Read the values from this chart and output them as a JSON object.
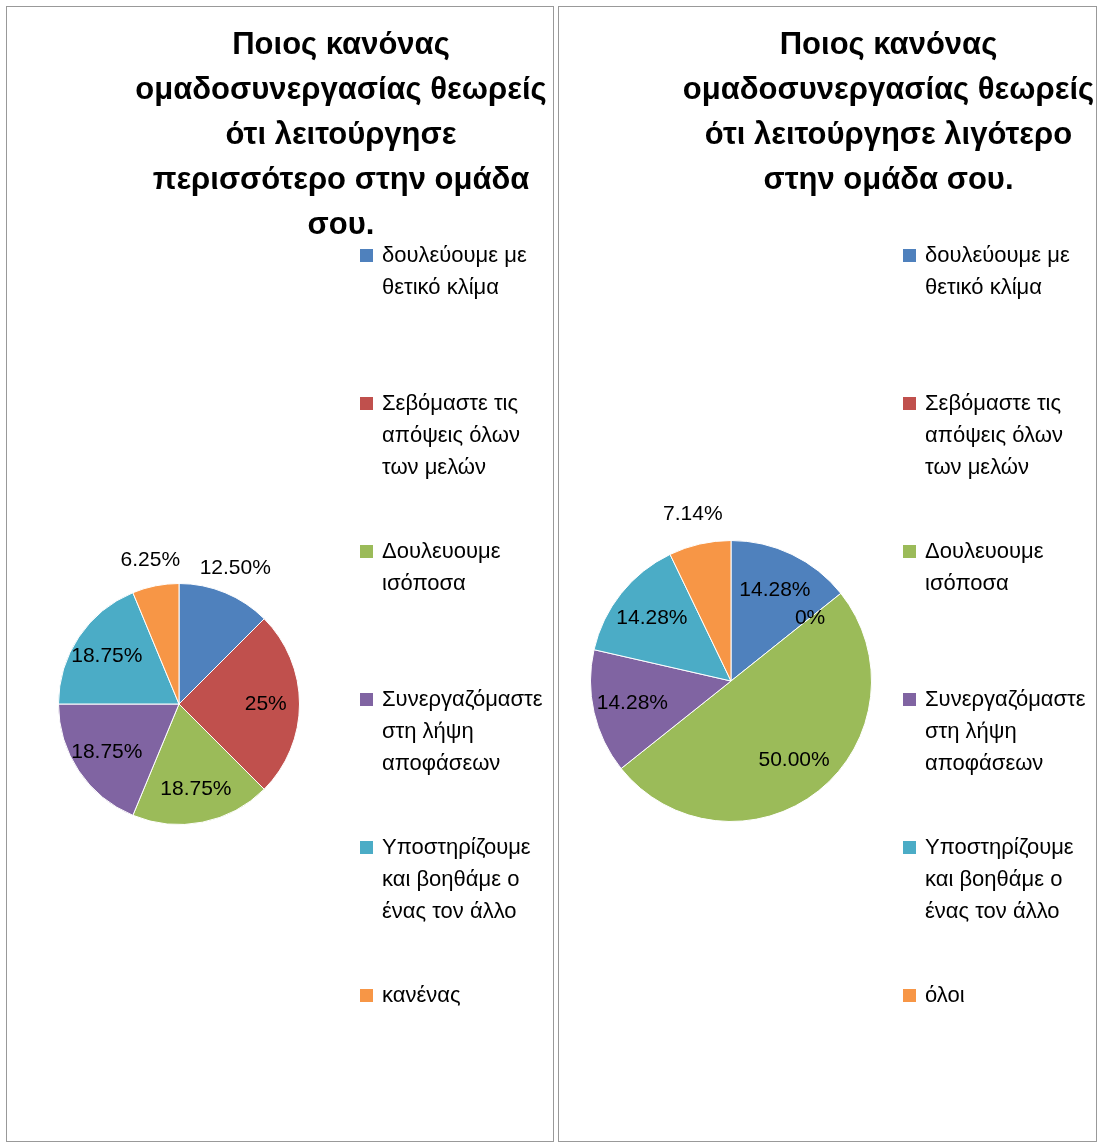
{
  "chart_data": [
    {
      "type": "pie",
      "title": "Ποιος κανόνας ομαδοσυνεργασίας θεωρείς ότι λειτούργησε περισσότερο στην ομάδα σου.",
      "categories": [
        "δουλεύουμε με θετικό κλίμα",
        "Σεβόμαστε τις απόψεις όλων των μελών",
        "Δουλευουμε ισόποσα",
        "Συνεργαζόμαστε στη λήψη αποφάσεων",
        "Υποστηρίζουμε και βοηθάμε ο ένας τον άλλο",
        "κανένας"
      ],
      "values": [
        12.5,
        25,
        18.75,
        18.75,
        18.75,
        6.25
      ],
      "value_labels": [
        "12.50%",
        "25%",
        "18.75%",
        "18.75%",
        "18.75%",
        "6.25%"
      ],
      "colors": [
        "#4f81bd",
        "#c0504d",
        "#9bbb59",
        "#8064a2",
        "#4bacc6",
        "#f79646"
      ],
      "legend": "right"
    },
    {
      "type": "pie",
      "title": "Ποιος κανόνας ομαδοσυνεργασίας θεωρείς ότι λειτούργησε λιγότερο στην ομάδα σου.",
      "categories": [
        "δουλεύουμε με θετικό κλίμα",
        "Σεβόμαστε τις απόψεις όλων των μελών",
        "Δουλευουμε ισόποσα",
        "Συνεργαζόμαστε στη λήψη αποφάσεων",
        "Υποστηρίζουμε και βοηθάμε ο ένας τον άλλο",
        "όλοι"
      ],
      "values": [
        14.28,
        0,
        50.0,
        14.28,
        14.28,
        7.14
      ],
      "value_labels": [
        "14.28%",
        "0%",
        "50.00%",
        "14.28%",
        "14.28%",
        "7.14%"
      ],
      "colors": [
        "#4f81bd",
        "#c0504d",
        "#9bbb59",
        "#8064a2",
        "#4bacc6",
        "#f79646"
      ],
      "legend": "right"
    }
  ]
}
